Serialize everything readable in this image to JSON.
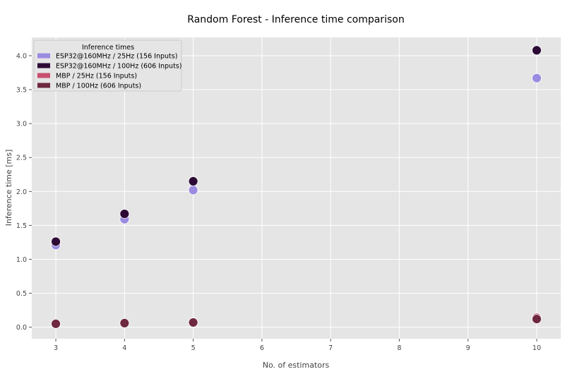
{
  "chart_data": {
    "type": "scatter",
    "title": "Random Forest - Inference time comparison",
    "xlabel": "No. of estimators",
    "ylabel": "Inference time [ms]",
    "xlim": [
      2.65,
      10.35
    ],
    "ylim": [
      -0.17,
      4.27
    ],
    "xticks": [
      3,
      4,
      5,
      6,
      7,
      8,
      9,
      10
    ],
    "yticks": [
      0.0,
      0.5,
      1.0,
      1.5,
      2.0,
      2.5,
      3.0,
      3.5,
      4.0
    ],
    "ytick_labels": [
      "0.0",
      "0.5",
      "1.0",
      "1.5",
      "2.0",
      "2.5",
      "3.0",
      "3.5",
      "4.0"
    ],
    "grid": true,
    "legend": {
      "title": "Inference times",
      "placement": "top-left"
    },
    "series": [
      {
        "name": "ESP32@160MHz / 25Hz (156 Inputs)",
        "color": "#9b8be0",
        "x": [
          3,
          4,
          5,
          10
        ],
        "y": [
          1.21,
          1.59,
          2.02,
          3.67
        ]
      },
      {
        "name": "ESP32@160MHz / 100Hz (606 Inputs)",
        "color": "#2d0a36",
        "x": [
          3,
          4,
          5,
          10
        ],
        "y": [
          1.26,
          1.67,
          2.15,
          4.08
        ]
      },
      {
        "name": "MBP / 25Hz (156 Inputs)",
        "color": "#c94f6e",
        "x": [
          3,
          4,
          5,
          10
        ],
        "y": [
          0.05,
          0.06,
          0.07,
          0.14
        ]
      },
      {
        "name": "MBP / 100Hz (606 Inputs)",
        "color": "#6e2840",
        "x": [
          3,
          4,
          5,
          10
        ],
        "y": [
          0.05,
          0.06,
          0.07,
          0.12
        ]
      }
    ]
  }
}
